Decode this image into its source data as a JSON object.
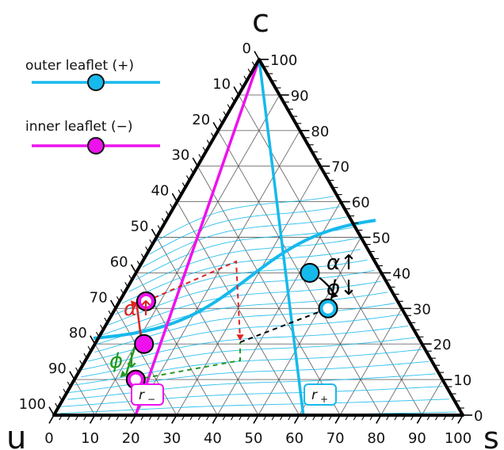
{
  "legend": {
    "outer_label": "outer leaflet (+)",
    "inner_label": "inner leaflet (−)"
  },
  "vertices": {
    "top": "c",
    "left": "u",
    "right": "s"
  },
  "colors": {
    "outer": "#16b9ec",
    "inner": "#ee11ee",
    "red": "#dd2222",
    "green": "#229922",
    "black": "#000000"
  },
  "chart_data": {
    "type": "ternary",
    "axes": {
      "bottom": {
        "name": "s",
        "ticks": [
          "0",
          "10",
          "20",
          "30",
          "40",
          "50",
          "60",
          "70",
          "80",
          "90",
          "100"
        ]
      },
      "right": {
        "name": "c",
        "ticks": [
          "0",
          "10",
          "20",
          "30",
          "40",
          "50",
          "60",
          "70",
          "80",
          "90",
          "100"
        ]
      },
      "left": {
        "name": "u",
        "ticks": [
          "0",
          "10",
          "20",
          "30",
          "40",
          "50",
          "60",
          "70",
          "80",
          "90",
          "100"
        ]
      }
    },
    "tie_lines": [
      {
        "name": "r−",
        "color": "inner",
        "from": {
          "s": 0,
          "c": 100
        },
        "to": {
          "s": 20,
          "c": 0
        }
      },
      {
        "name": "r+",
        "color": "outer",
        "from": {
          "s": 0,
          "c": 100
        },
        "to": {
          "s": 61,
          "c": 0
        }
      }
    ],
    "points": [
      {
        "id": "outer-filled",
        "s": 42.5,
        "c": 40,
        "fill": "outer"
      },
      {
        "id": "outer-open",
        "s": 52,
        "c": 30,
        "fill": "white",
        "stroke": "outer"
      },
      {
        "id": "inner-upper-open",
        "s": 6.5,
        "c": 32,
        "fill": "white",
        "stroke": "inner"
      },
      {
        "id": "inner-filled",
        "s": 12,
        "c": 20,
        "fill": "inner"
      },
      {
        "id": "inner-lower-open",
        "s": 15,
        "c": 10,
        "fill": "white",
        "stroke": "inner"
      }
    ],
    "annotations": [
      {
        "id": "alpha-up-outer",
        "text": "α↑",
        "color": "black"
      },
      {
        "id": "phi-down-outer",
        "text": "ϕ↓",
        "color": "black"
      },
      {
        "id": "alpha-up-inner",
        "text": "α↑",
        "color": "red"
      },
      {
        "id": "phi-down-inner",
        "text": "ϕ↓",
        "color": "green"
      }
    ],
    "line_labels": [
      {
        "id": "r-minus",
        "main": "r",
        "sub": "−",
        "color": "inner"
      },
      {
        "id": "r-plus",
        "main": "r",
        "sub": "+",
        "color": "outer"
      }
    ]
  }
}
